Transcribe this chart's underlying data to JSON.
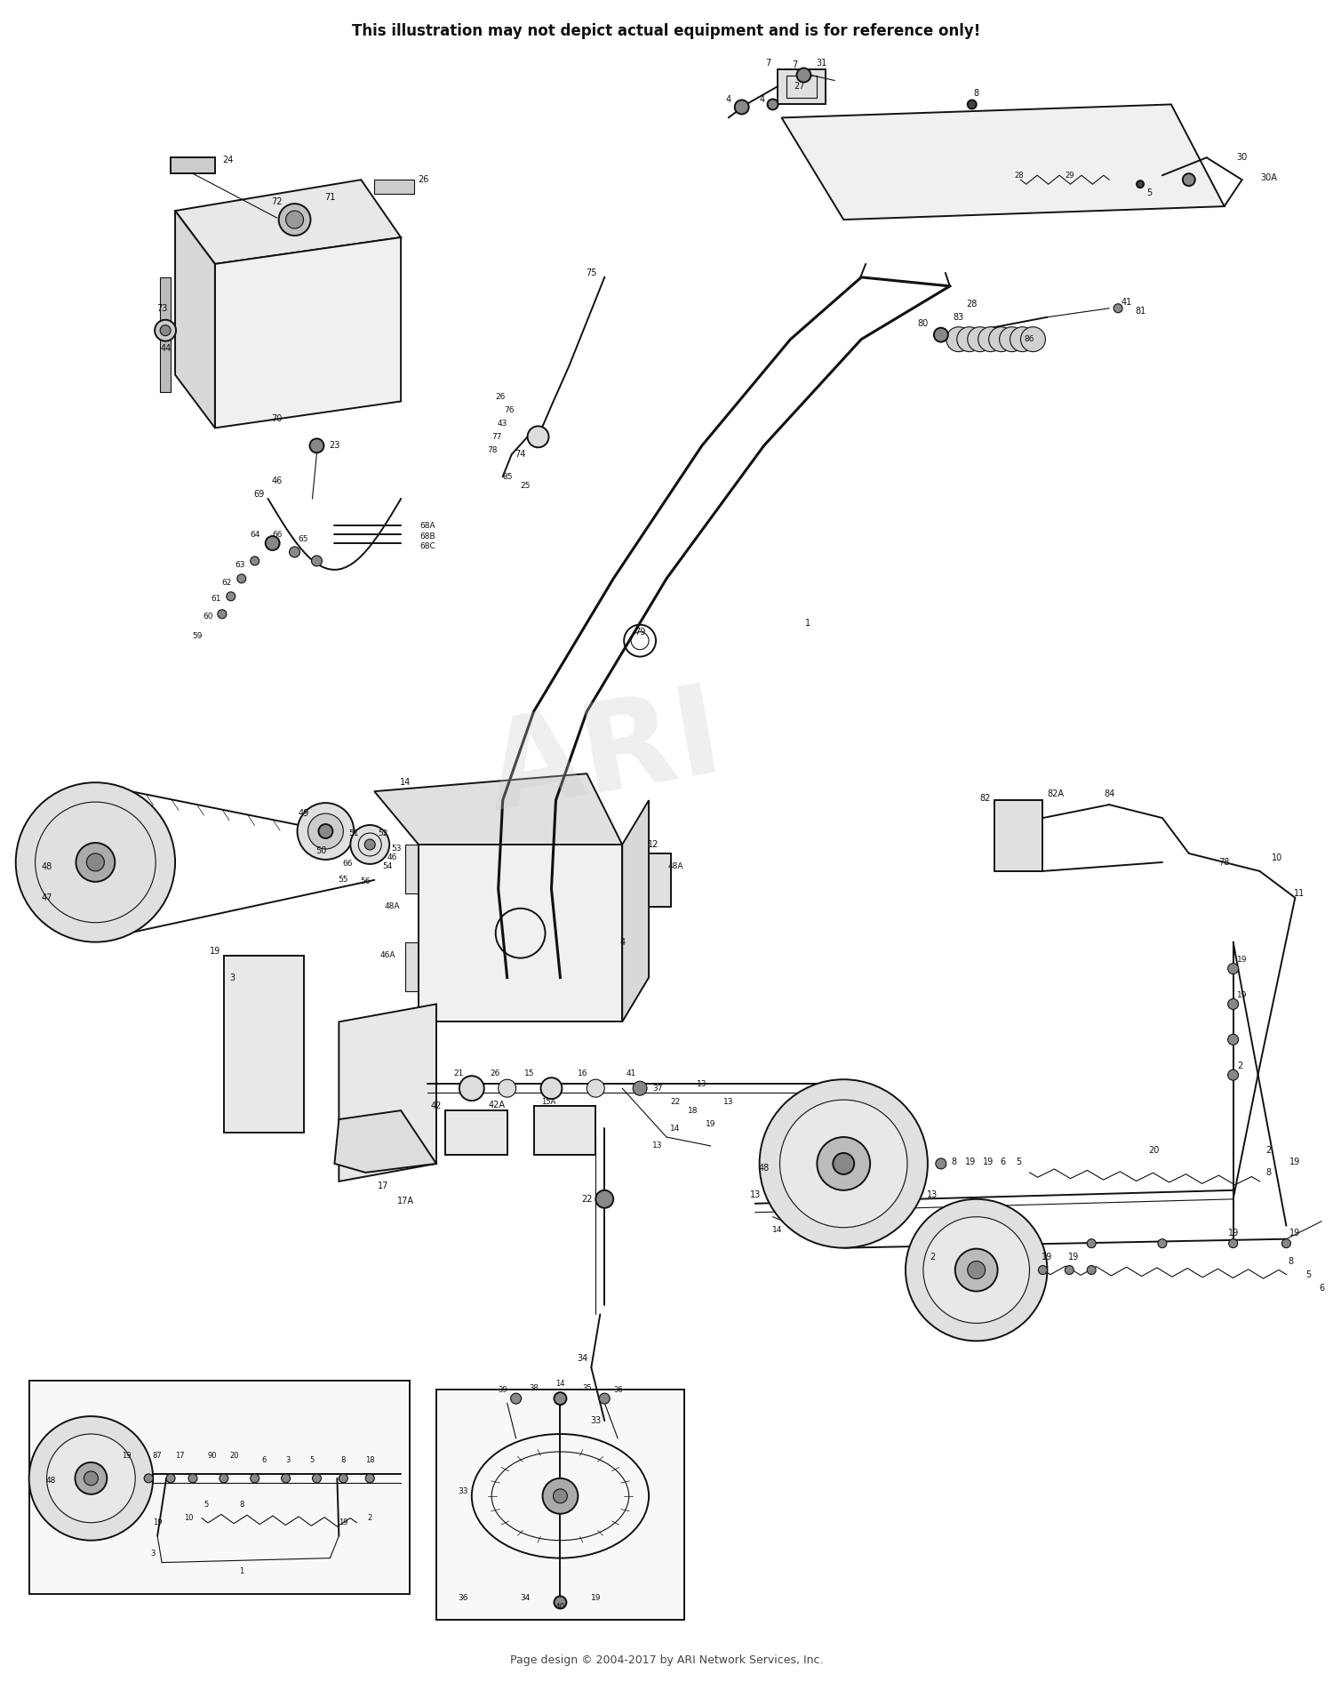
{
  "title_top": "This illustration may not depict actual equipment and is for reference only!",
  "title_fontsize": 12,
  "footer_text": "Page design © 2004-2017 by ARI Network Services, Inc.",
  "footer_fontsize": 9,
  "watermark": "ARI",
  "bg": "#ffffff",
  "fg": "#111111",
  "fig_w": 15.0,
  "fig_h": 18.92
}
